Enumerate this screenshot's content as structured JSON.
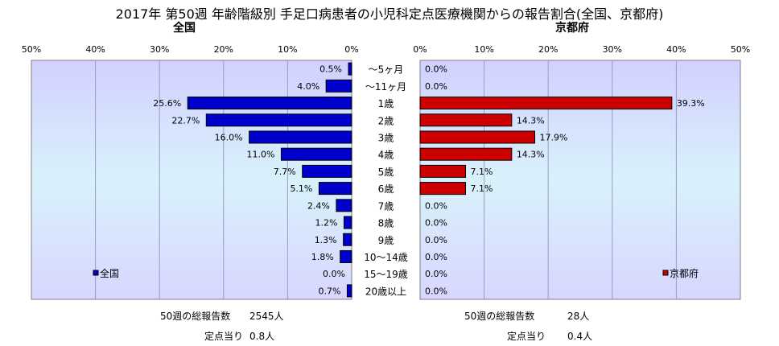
{
  "title": "2017年 第50週 年齢階級別 手足口病患者の小児科定点医療機関からの報告割合(全国、京都府)",
  "chart_data": [
    {
      "type": "bar",
      "orientation": "horizontal",
      "title": "全国",
      "categories": [
        "～5ヶ月",
        "～11ヶ月",
        "1歳",
        "2歳",
        "3歳",
        "4歳",
        "5歳",
        "6歳",
        "7歳",
        "8歳",
        "9歳",
        "10～14歳",
        "15～19歳",
        "20歳以上"
      ],
      "series": [
        {
          "name": "全国",
          "values": [
            0.5,
            4.0,
            25.6,
            22.7,
            16.0,
            11.0,
            7.7,
            5.1,
            2.4,
            1.2,
            1.3,
            1.8,
            0.0,
            0.7
          ]
        }
      ],
      "xlim": [
        0,
        50
      ],
      "x_ticks": [
        "50%",
        "40%",
        "30%",
        "20%",
        "10%",
        "0%"
      ],
      "direction": "right-to-left",
      "color": "#0000cc",
      "legend_position": "bottom-left",
      "grid": true
    },
    {
      "type": "bar",
      "orientation": "horizontal",
      "title": "京都府",
      "categories": [
        "～5ヶ月",
        "～11ヶ月",
        "1歳",
        "2歳",
        "3歳",
        "4歳",
        "5歳",
        "6歳",
        "7歳",
        "8歳",
        "9歳",
        "10～14歳",
        "15～19歳",
        "20歳以上"
      ],
      "series": [
        {
          "name": "京都府",
          "values": [
            0.0,
            0.0,
            39.3,
            14.3,
            17.9,
            14.3,
            7.1,
            7.1,
            0.0,
            0.0,
            0.0,
            0.0,
            0.0,
            0.0
          ]
        }
      ],
      "xlim": [
        0,
        50
      ],
      "x_ticks": [
        "0%",
        "10%",
        "20%",
        "30%",
        "40%",
        "50%"
      ],
      "direction": "left-to-right",
      "color": "#cc0000",
      "legend_position": "bottom-right",
      "grid": true
    }
  ],
  "stats": {
    "national": {
      "total_label": "50週の総報告数",
      "total_value": "2545人",
      "per_label": "定点当り",
      "per_value": "0.8人"
    },
    "kyoto": {
      "total_label": "50週の総報告数",
      "total_value": "28人",
      "per_label": "定点当り",
      "per_value": "0.4人"
    }
  }
}
